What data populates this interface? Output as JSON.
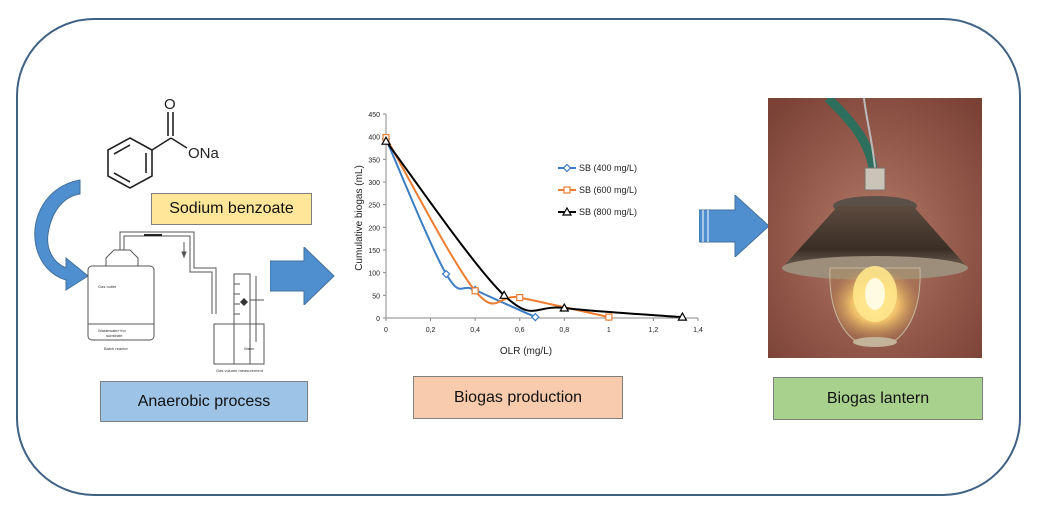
{
  "molecule": {
    "carbonyl_o": "O",
    "salt": "ONa"
  },
  "labels": {
    "sodium_benzoate": "Sodium benzoate",
    "anaerobic_process": "Anaerobic process",
    "biogas_production": "Biogas production",
    "biogas_lantern": "Biogas lantern"
  },
  "apparatus": {
    "gas_outlet": "Gas outlet",
    "wastewater": "Wastewater+no",
    "substrate": "substrate",
    "batch_reactor": "Batch reactor",
    "water": "Water",
    "gas_volume": "Gas volume measurement"
  },
  "colors": {
    "frame": "#3e6184",
    "arrow": "#4f8fd0",
    "sodium_benzoate_bg": "#ffe699",
    "anaerobic_bg": "#9dc3e6",
    "production_bg": "#f8cbad",
    "lantern_bg": "#a9d18e"
  },
  "chart_data": {
    "type": "line",
    "xlabel": "OLR (mg/L)",
    "ylabel": "Cumulative biogas (mL)",
    "xlim": [
      0,
      1.4
    ],
    "ylim": [
      0,
      450
    ],
    "xticks": [
      "0",
      "0,2",
      "0,4",
      "0,6",
      "0,8",
      "1",
      "1,2",
      "1,4"
    ],
    "yticks": [
      "0",
      "50",
      "100",
      "150",
      "200",
      "250",
      "300",
      "350",
      "400",
      "450"
    ],
    "legend_position": "right",
    "series": [
      {
        "name": "SB (400 mg/L)",
        "color": "#3c7dc4",
        "marker": "diamond",
        "points": [
          [
            0,
            395
          ],
          [
            0.27,
            97
          ],
          [
            0.4,
            62
          ],
          [
            0.67,
            2
          ]
        ]
      },
      {
        "name": "SB (600 mg/L)",
        "color": "#ed7d31",
        "marker": "square",
        "points": [
          [
            0,
            398
          ],
          [
            0.4,
            60
          ],
          [
            0.6,
            45
          ],
          [
            1.0,
            2
          ]
        ]
      },
      {
        "name": "SB (800 mg/L)",
        "color": "#000000",
        "marker": "triangle",
        "points": [
          [
            0,
            390
          ],
          [
            0.53,
            50
          ],
          [
            0.8,
            22
          ],
          [
            1.33,
            2
          ]
        ]
      }
    ]
  }
}
